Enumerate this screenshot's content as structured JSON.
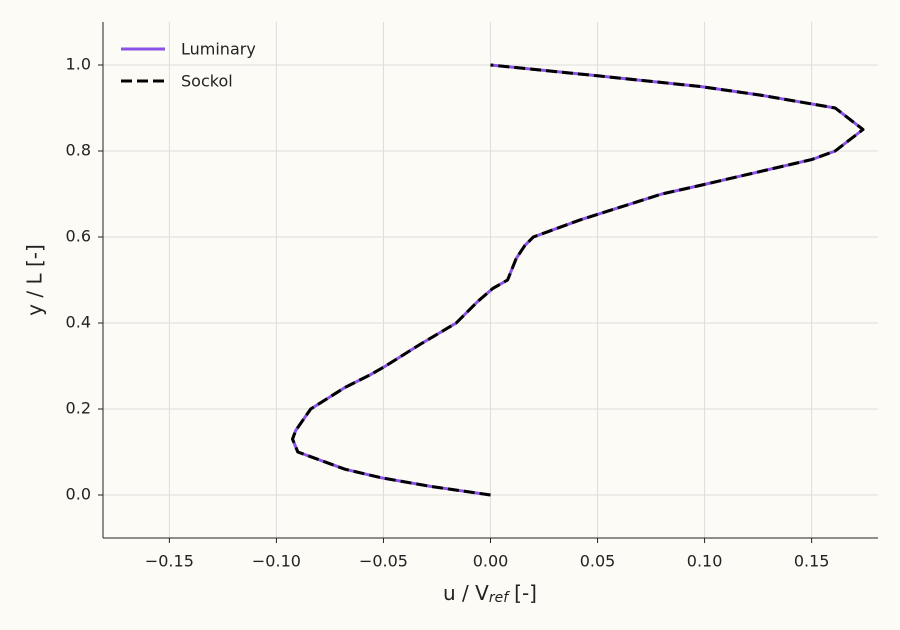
{
  "chart_data": {
    "type": "line",
    "xlabel": {
      "main": "u / V",
      "subscript": "ref",
      "suffix": "[-]"
    },
    "ylabel": "y / L [-]",
    "xlim": [
      -0.181,
      0.181
    ],
    "ylim": [
      -0.1,
      1.1
    ],
    "xticks": [
      {
        "value": -0.15,
        "label": "−0.15"
      },
      {
        "value": -0.1,
        "label": "−0.10"
      },
      {
        "value": -0.05,
        "label": "−0.05"
      },
      {
        "value": 0,
        "label": "0.00"
      },
      {
        "value": 0.05,
        "label": "0.05"
      },
      {
        "value": 0.1,
        "label": "0.10"
      },
      {
        "value": 0.15,
        "label": "0.15"
      }
    ],
    "yticks": [
      {
        "value": 0,
        "label": "0.0"
      },
      {
        "value": 0.2,
        "label": "0.2"
      },
      {
        "value": 0.4,
        "label": "0.4"
      },
      {
        "value": 0.6,
        "label": "0.6"
      },
      {
        "value": 0.8,
        "label": "0.8"
      },
      {
        "value": 1,
        "label": "1.0"
      }
    ],
    "grid": true,
    "legend": "upper left",
    "series": [
      {
        "name": "Luminary",
        "color": "#8b52e8",
        "dash": false,
        "x": [
          0,
          -0.014,
          -0.028,
          -0.051,
          -0.068,
          -0.079,
          -0.09,
          -0.0925,
          -0.091,
          -0.084,
          -0.068,
          -0.056,
          -0.049,
          -0.033,
          -0.016,
          -0.006,
          0.001,
          0.008,
          0.012,
          0.016,
          0.02,
          0.042,
          0.08,
          0.098,
          0.15,
          0.161,
          0.174,
          0.161,
          0.126,
          0.098,
          0.05,
          0
        ],
        "values": [
          0,
          0.01,
          0.02,
          0.04,
          0.06,
          0.08,
          0.1,
          0.13,
          0.15,
          0.2,
          0.25,
          0.28,
          0.3,
          0.35,
          0.4,
          0.45,
          0.48,
          0.5,
          0.55,
          0.58,
          0.6,
          0.64,
          0.7,
          0.72,
          0.78,
          0.8,
          0.85,
          0.9,
          0.93,
          0.95,
          0.975,
          1
        ]
      },
      {
        "name": "Sockol",
        "color": "#000000",
        "dash": true,
        "x": [
          0,
          -0.014,
          -0.028,
          -0.051,
          -0.068,
          -0.079,
          -0.09,
          -0.0925,
          -0.091,
          -0.084,
          -0.068,
          -0.056,
          -0.049,
          -0.033,
          -0.016,
          -0.006,
          0.001,
          0.008,
          0.012,
          0.016,
          0.02,
          0.042,
          0.08,
          0.098,
          0.15,
          0.161,
          0.174,
          0.161,
          0.126,
          0.098,
          0.05,
          0
        ],
        "values": [
          0,
          0.01,
          0.02,
          0.04,
          0.06,
          0.08,
          0.1,
          0.13,
          0.15,
          0.2,
          0.25,
          0.28,
          0.3,
          0.35,
          0.4,
          0.45,
          0.48,
          0.5,
          0.55,
          0.58,
          0.6,
          0.64,
          0.7,
          0.72,
          0.78,
          0.8,
          0.85,
          0.9,
          0.93,
          0.95,
          0.975,
          1
        ]
      }
    ]
  }
}
